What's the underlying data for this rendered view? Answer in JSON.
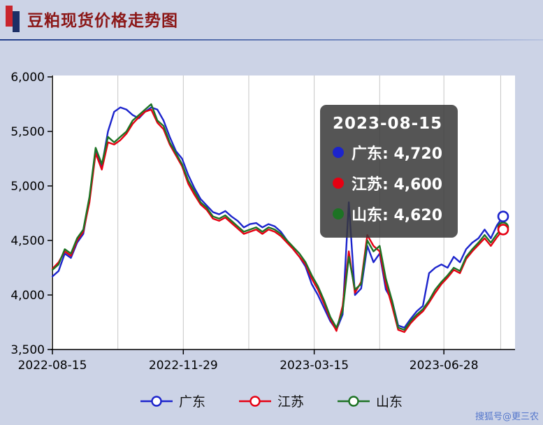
{
  "header": {
    "title": "豆粕现货价格走势图"
  },
  "watermark": {
    "text": "搜狐号@更三农"
  },
  "tooltip": {
    "date": "2023-08-15",
    "items": [
      {
        "label": "广东",
        "value": "4,720",
        "color": "#1c24cc"
      },
      {
        "label": "江苏",
        "value": "4,600",
        "color": "#e60012"
      },
      {
        "label": "山东",
        "value": "4,620",
        "color": "#1d7324"
      }
    ]
  },
  "chart_data": {
    "type": "line",
    "title": "豆粕现货价格走势图",
    "ylabel": "",
    "xlabel": "",
    "ylim": [
      3500,
      6000
    ],
    "y_ticks": [
      3500,
      4000,
      4500,
      5000,
      5500,
      6000
    ],
    "y_tick_labels": [
      "3,500",
      "4,000",
      "4,500",
      "5,000",
      "5,500",
      "6,000"
    ],
    "x_range_days": [
      0,
      365
    ],
    "x_ticks": [
      {
        "day": 0,
        "label": "2022-08-15"
      },
      {
        "day": 106,
        "label": "2022-11-29"
      },
      {
        "day": 212,
        "label": "2023-03-15"
      },
      {
        "day": 317,
        "label": "2023-06-28"
      }
    ],
    "grid_days": [
      53,
      106,
      159,
      212,
      265,
      317,
      363
    ],
    "sample_step_days": 5,
    "grid": "vertical-only",
    "legend_position": "bottom",
    "series": [
      {
        "name": "广东",
        "color": "#1c24cc",
        "values": [
          4170,
          4220,
          4380,
          4340,
          4480,
          4560,
          4880,
          5320,
          5180,
          5500,
          5680,
          5720,
          5700,
          5650,
          5620,
          5680,
          5720,
          5700,
          5600,
          5450,
          5320,
          5250,
          5100,
          4980,
          4880,
          4820,
          4760,
          4740,
          4770,
          4720,
          4680,
          4620,
          4650,
          4660,
          4620,
          4650,
          4630,
          4580,
          4500,
          4420,
          4350,
          4260,
          4100,
          4000,
          3880,
          3760,
          3680,
          3820,
          4850,
          4000,
          4060,
          4450,
          4300,
          4380,
          4050,
          3950,
          3720,
          3700,
          3780,
          3850,
          3900,
          4200,
          4250,
          4280,
          4250,
          4350,
          4300,
          4420,
          4480,
          4520,
          4600,
          4520,
          4640,
          4720
        ]
      },
      {
        "name": "江苏",
        "color": "#e60012",
        "values": [
          4240,
          4300,
          4400,
          4360,
          4500,
          4580,
          4850,
          5300,
          5150,
          5400,
          5380,
          5420,
          5480,
          5570,
          5630,
          5680,
          5700,
          5580,
          5520,
          5380,
          5280,
          5180,
          5020,
          4920,
          4830,
          4780,
          4700,
          4680,
          4710,
          4660,
          4610,
          4560,
          4580,
          4600,
          4560,
          4600,
          4580,
          4540,
          4480,
          4420,
          4350,
          4280,
          4150,
          4050,
          3920,
          3780,
          3670,
          3900,
          4400,
          4020,
          4120,
          4550,
          4450,
          4400,
          4100,
          3900,
          3680,
          3660,
          3740,
          3800,
          3850,
          3930,
          4020,
          4100,
          4160,
          4230,
          4200,
          4330,
          4400,
          4460,
          4520,
          4450,
          4530,
          4600
        ]
      },
      {
        "name": "山东",
        "color": "#1d7324",
        "values": [
          4230,
          4280,
          4420,
          4380,
          4520,
          4600,
          4900,
          5350,
          5200,
          5450,
          5400,
          5450,
          5500,
          5600,
          5650,
          5700,
          5750,
          5600,
          5550,
          5400,
          5300,
          5200,
          5050,
          4950,
          4850,
          4800,
          4720,
          4700,
          4730,
          4680,
          4630,
          4580,
          4600,
          4620,
          4580,
          4620,
          4600,
          4560,
          4500,
          4440,
          4380,
          4300,
          4180,
          4080,
          3950,
          3800,
          3700,
          3850,
          4350,
          4050,
          4100,
          4500,
          4400,
          4450,
          4150,
          3950,
          3700,
          3680,
          3760,
          3820,
          3870,
          3950,
          4050,
          4120,
          4180,
          4250,
          4220,
          4350,
          4420,
          4480,
          4550,
          4480,
          4560,
          4620
        ]
      }
    ]
  }
}
